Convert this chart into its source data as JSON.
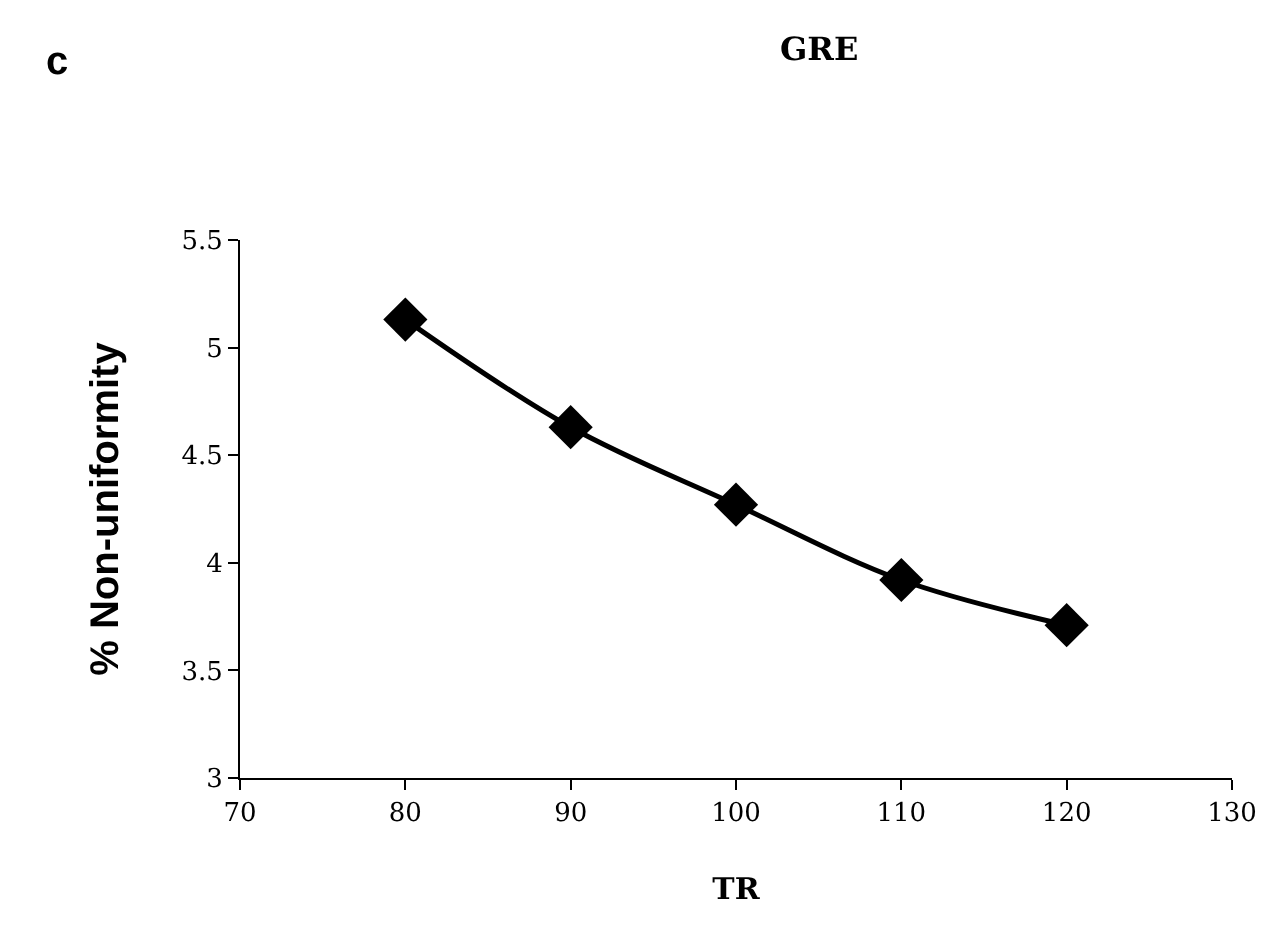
{
  "chart_data": {
    "type": "line",
    "title": "GRE",
    "xlabel": "TR",
    "ylabel": "% Non-uniformity",
    "annotations": [
      "c"
    ],
    "x": [
      80,
      90,
      100,
      110,
      120
    ],
    "series": [
      {
        "color": "#000000",
        "values": [
          5.13,
          4.63,
          4.27,
          3.92,
          3.71
        ]
      }
    ],
    "xlim": [
      70,
      130
    ],
    "xticks": [
      70,
      80,
      90,
      100,
      110,
      120,
      130
    ],
    "ylim": [
      3,
      5.5
    ],
    "yticks": [
      3,
      3.5,
      4,
      4.5,
      5,
      5.5
    ],
    "marker": "diamond",
    "line_style": "solid",
    "legend": false
  }
}
